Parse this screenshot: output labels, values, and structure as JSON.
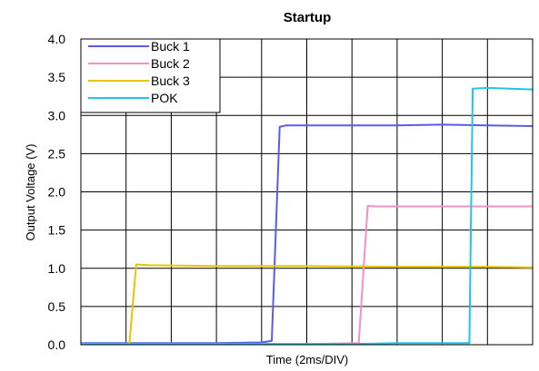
{
  "chart_data": {
    "type": "line",
    "title": "Startup",
    "xlabel": "Time (2ms/DIV)",
    "ylabel": "Output Voltage (V)",
    "xlim": [
      0,
      20
    ],
    "ylim": [
      0,
      4.0
    ],
    "x_divisions": 10,
    "y_ticks": [
      "0.0",
      "0.5",
      "1.0",
      "1.5",
      "2.0",
      "2.5",
      "3.0",
      "3.5",
      "4.0"
    ],
    "grid": true,
    "legend_position": "top-left",
    "series": [
      {
        "name": "Buck 1",
        "color": "#5b5be6",
        "x": [
          0,
          2,
          4,
          6,
          8,
          8.45,
          8.8,
          9.1,
          10,
          12,
          14,
          16,
          18,
          20
        ],
        "y": [
          0.02,
          0.02,
          0.02,
          0.02,
          0.03,
          0.05,
          2.85,
          2.87,
          2.87,
          2.87,
          2.87,
          2.88,
          2.87,
          2.86
        ]
      },
      {
        "name": "Buck 2",
        "color": "#f590c3",
        "x": [
          0,
          2,
          4,
          6,
          8,
          10,
          12.3,
          12.7,
          13.0,
          14,
          16,
          18,
          20
        ],
        "y": [
          0.01,
          0.01,
          0.01,
          0.01,
          0.01,
          0.01,
          0.02,
          1.82,
          1.81,
          1.81,
          1.81,
          1.81,
          1.81
        ]
      },
      {
        "name": "Buck 3",
        "color": "#e8c300",
        "x": [
          0,
          2,
          2.15,
          2.45,
          3,
          6,
          10,
          14,
          18,
          20
        ],
        "y": [
          0.01,
          0.01,
          0.02,
          1.05,
          1.04,
          1.03,
          1.03,
          1.02,
          1.02,
          1.01
        ]
      },
      {
        "name": "POK",
        "color": "#22c4e8",
        "x": [
          0,
          2,
          4,
          6,
          8,
          10,
          12,
          14,
          17.2,
          17.35,
          18,
          19,
          20
        ],
        "y": [
          0.01,
          0.01,
          0.01,
          0.01,
          0.01,
          0.01,
          0.01,
          0.02,
          0.02,
          3.35,
          3.36,
          3.35,
          3.34
        ]
      }
    ]
  }
}
